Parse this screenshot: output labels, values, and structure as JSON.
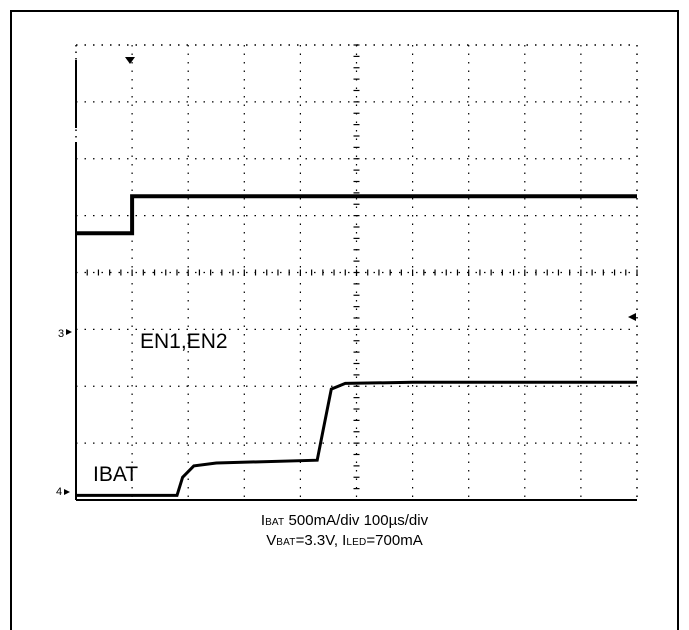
{
  "chart_data": {
    "type": "line",
    "title": "",
    "grid": true,
    "divisions": {
      "x": 10,
      "y": 8
    },
    "series": [
      {
        "name": "EN1,EN2",
        "channel_marker": "3",
        "points": [
          [
            0,
            4.69
          ],
          [
            1,
            4.69
          ],
          [
            1,
            5.34
          ],
          [
            10,
            5.34
          ]
        ]
      },
      {
        "name": "IBAT",
        "channel_marker": "4",
        "points": [
          [
            0,
            0.08
          ],
          [
            1.8,
            0.08
          ],
          [
            1.9,
            0.4
          ],
          [
            2.1,
            0.6
          ],
          [
            2.5,
            0.65
          ],
          [
            4.3,
            0.7
          ],
          [
            4.4,
            1.2
          ],
          [
            4.55,
            1.95
          ],
          [
            4.8,
            2.05
          ],
          [
            6,
            2.07
          ],
          [
            10,
            2.07
          ]
        ]
      }
    ],
    "trigger_marker": "top-left, at first major x division"
  },
  "captions": {
    "line1_ibat_main": "I",
    "line1_ibat_sub": "BAT",
    "line1_rest": " 500mA/div  100µs/div",
    "line2_vbat_main": "V",
    "line2_vbat_sub": "BAT",
    "line2_mid": "=3.3V, I",
    "line2_iled_sub": "LED",
    "line2_end": "=700mA"
  },
  "labels": {
    "ch3": "3",
    "ch4": "4",
    "en": "EN1,EN2",
    "ibat": "IBAT"
  }
}
